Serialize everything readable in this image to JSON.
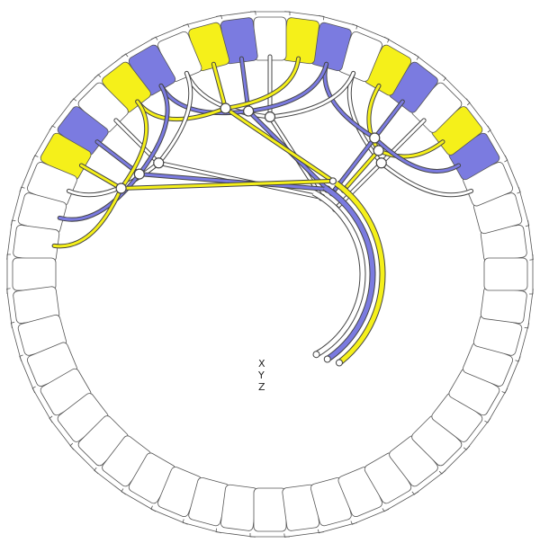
{
  "diagram": {
    "type": "stator-winding-layout",
    "slot_count": 48,
    "colors": {
      "X": "#ffffff",
      "Y": "#7b7be0",
      "Z": "#f5f01a",
      "outline": "#555555",
      "background": "#ffffff"
    },
    "phase_labels": [
      {
        "id": "X",
        "label": "X"
      },
      {
        "id": "Y",
        "label": "Y"
      },
      {
        "id": "Z",
        "label": "Z"
      }
    ],
    "filled_slots": [
      {
        "slot": 3,
        "phase": "Y"
      },
      {
        "slot": 4,
        "phase": "Z"
      },
      {
        "slot": 5,
        "phase": "X"
      },
      {
        "slot": 6,
        "phase": "Y"
      },
      {
        "slot": 7,
        "phase": "Z"
      },
      {
        "slot": 8,
        "phase": "X"
      },
      {
        "slot": 9,
        "phase": "Y"
      },
      {
        "slot": 10,
        "phase": "Z"
      },
      {
        "slot": 11,
        "phase": "X"
      },
      {
        "slot": 12,
        "phase": "Y"
      },
      {
        "slot": 13,
        "phase": "Z"
      },
      {
        "slot": 14,
        "phase": "X"
      },
      {
        "slot": 15,
        "phase": "Y"
      },
      {
        "slot": 16,
        "phase": "Z"
      },
      {
        "slot": 17,
        "phase": "X"
      },
      {
        "slot": 18,
        "phase": "Y"
      },
      {
        "slot": 19,
        "phase": "Z"
      },
      {
        "slot": 20,
        "phase": "X"
      }
    ],
    "coil_groups": [
      {
        "phase": "X",
        "slots": [
          2,
          5,
          8
        ]
      },
      {
        "phase": "Z",
        "slots": [
          4,
          7
        ]
      },
      {
        "phase": "Y",
        "slots": [
          3,
          6,
          9
        ]
      },
      {
        "phase": "X",
        "slots": [
          8,
          11,
          14
        ]
      },
      {
        "phase": "Y",
        "slots": [
          12,
          9,
          15
        ]
      },
      {
        "phase": "Z",
        "slots": [
          13,
          10,
          16
        ]
      },
      {
        "phase": "X",
        "slots": [
          17,
          14,
          20
        ]
      },
      {
        "phase": "Y",
        "slots": [
          18,
          15,
          21
        ]
      },
      {
        "phase": "Z",
        "slots": [
          19,
          16,
          22
        ]
      }
    ]
  }
}
